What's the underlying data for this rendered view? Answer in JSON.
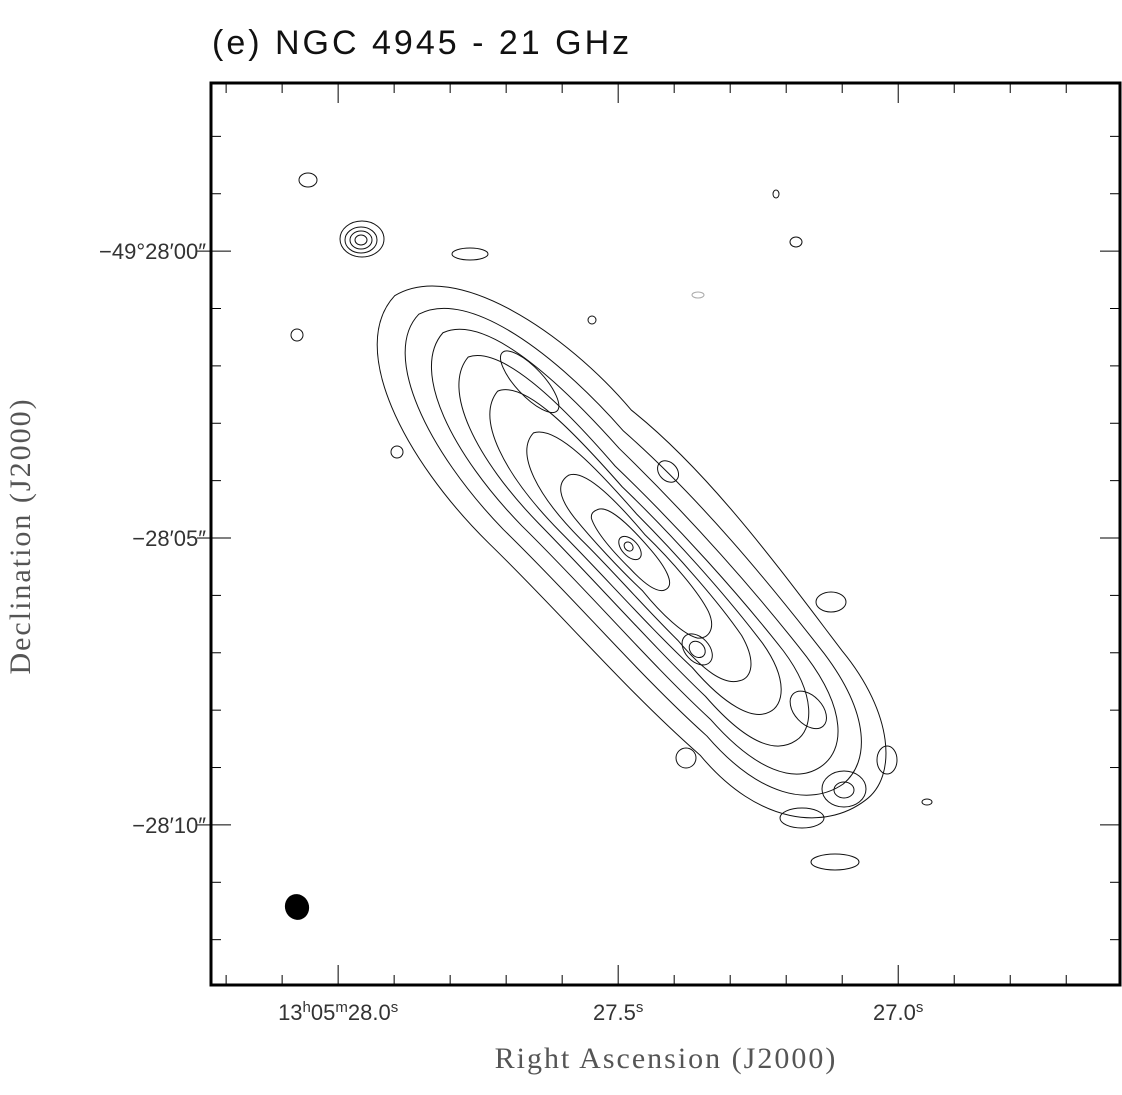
{
  "chart_data": {
    "type": "contour",
    "title": "(e) NGC 4945 - 21 GHz",
    "xlabel": "Right Ascension (J2000)",
    "ylabel": "Declination (J2000)",
    "xlim": [
      28.227,
      26.604
    ],
    "xticks": [
      {
        "value": 28.0,
        "label": "13h05m28.0s"
      },
      {
        "value": 27.5,
        "label": "27.5s"
      },
      {
        "value": 27.0,
        "label": "27.0s"
      }
    ],
    "xminorticks": [
      28.2,
      28.1,
      27.9,
      27.8,
      27.7,
      27.6,
      27.4,
      27.3,
      27.2,
      27.1,
      26.9,
      26.8,
      26.7
    ],
    "ylim": [
      12.79,
      -2.93
    ],
    "yticks": [
      {
        "value": 0,
        "label": "−49°28′00″"
      },
      {
        "value": 5,
        "label": "−28′05″"
      },
      {
        "value": 10,
        "label": "−28′10″"
      }
    ],
    "yminorticks": [
      -2,
      -1,
      1,
      2,
      3,
      4,
      6,
      7,
      8,
      9,
      11,
      12
    ]
  }
}
